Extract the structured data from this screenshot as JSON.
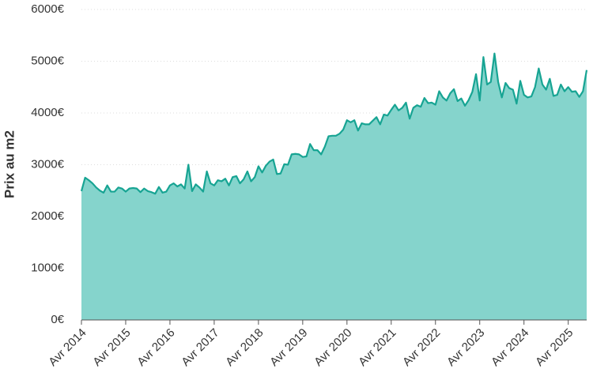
{
  "chart_data": {
    "type": "area",
    "y_label": "Prix au m2",
    "x": [
      "2014-04",
      "2014-05",
      "2014-06",
      "2014-07",
      "2014-08",
      "2014-09",
      "2014-10",
      "2014-11",
      "2014-12",
      "2015-01",
      "2015-02",
      "2015-03",
      "2015-04",
      "2015-05",
      "2015-06",
      "2015-07",
      "2015-08",
      "2015-09",
      "2015-10",
      "2015-11",
      "2015-12",
      "2016-01",
      "2016-02",
      "2016-03",
      "2016-04",
      "2016-05",
      "2016-06",
      "2016-07",
      "2016-08",
      "2016-09",
      "2016-10",
      "2016-11",
      "2016-12",
      "2017-01",
      "2017-02",
      "2017-03",
      "2017-04",
      "2017-05",
      "2017-06",
      "2017-07",
      "2017-08",
      "2017-09",
      "2017-10",
      "2017-11",
      "2017-12",
      "2018-01",
      "2018-02",
      "2018-03",
      "2018-04",
      "2018-05",
      "2018-06",
      "2018-07",
      "2018-08",
      "2018-09",
      "2018-10",
      "2018-11",
      "2018-12",
      "2019-01",
      "2019-02",
      "2019-03",
      "2019-04",
      "2019-05",
      "2019-06",
      "2019-07",
      "2019-08",
      "2019-09",
      "2019-10",
      "2019-11",
      "2019-12",
      "2020-01",
      "2020-02",
      "2020-03",
      "2020-04",
      "2020-05",
      "2020-06",
      "2020-07",
      "2020-08",
      "2020-09",
      "2020-10",
      "2020-11",
      "2020-12",
      "2021-01",
      "2021-02",
      "2021-03",
      "2021-04",
      "2021-05",
      "2021-06",
      "2021-07",
      "2021-08",
      "2021-09",
      "2021-10",
      "2021-11",
      "2021-12",
      "2022-01",
      "2022-02",
      "2022-03",
      "2022-04",
      "2022-05",
      "2022-06",
      "2022-07",
      "2022-08",
      "2022-09",
      "2022-10",
      "2022-11",
      "2022-12",
      "2023-01",
      "2023-02",
      "2023-03",
      "2023-04",
      "2023-05",
      "2023-06",
      "2023-07",
      "2023-08",
      "2023-09",
      "2023-10",
      "2023-11",
      "2023-12",
      "2024-01",
      "2024-02",
      "2024-03",
      "2024-04",
      "2024-05",
      "2024-06",
      "2024-07",
      "2024-08",
      "2024-09",
      "2024-10",
      "2024-11",
      "2024-12",
      "2025-01",
      "2025-02",
      "2025-03",
      "2025-04",
      "2025-05",
      "2025-06",
      "2025-07",
      "2025-08",
      "2025-09"
    ],
    "values": [
      2490,
      2750,
      2700,
      2640,
      2560,
      2500,
      2460,
      2600,
      2480,
      2480,
      2560,
      2540,
      2480,
      2540,
      2550,
      2540,
      2470,
      2540,
      2490,
      2470,
      2440,
      2570,
      2460,
      2480,
      2600,
      2640,
      2580,
      2620,
      2540,
      3000,
      2490,
      2620,
      2560,
      2480,
      2870,
      2640,
      2600,
      2700,
      2680,
      2730,
      2600,
      2760,
      2780,
      2640,
      2720,
      2870,
      2680,
      2760,
      2970,
      2850,
      2980,
      3060,
      3100,
      2820,
      2830,
      3010,
      3000,
      3200,
      3210,
      3200,
      3150,
      3160,
      3400,
      3280,
      3280,
      3200,
      3350,
      3550,
      3560,
      3560,
      3600,
      3680,
      3860,
      3820,
      3860,
      3660,
      3800,
      3780,
      3780,
      3850,
      3920,
      3780,
      3970,
      3950,
      4060,
      4160,
      4050,
      4100,
      4200,
      3890,
      4100,
      4150,
      4120,
      4290,
      4190,
      4200,
      4160,
      4420,
      4300,
      4240,
      4380,
      4460,
      4230,
      4280,
      4140,
      4250,
      4410,
      4750,
      4240,
      5080,
      4550,
      4600,
      5150,
      4600,
      4300,
      4580,
      4480,
      4450,
      4180,
      4620,
      4350,
      4300,
      4320,
      4500,
      4860,
      4550,
      4450,
      4660,
      4330,
      4350,
      4550,
      4420,
      4500,
      4410,
      4420,
      4310,
      4420,
      4830
    ],
    "line_color": "#17a493",
    "fill_color": "#85d4cc",
    "ylim": [
      0,
      6000
    ],
    "yticks": [
      {
        "value": 0,
        "label": "0€"
      },
      {
        "value": 1000,
        "label": "1000€"
      },
      {
        "value": 2000,
        "label": "2000€"
      },
      {
        "value": 3000,
        "label": "3000€"
      },
      {
        "value": 4000,
        "label": "4000€"
      },
      {
        "value": 5000,
        "label": "5000€"
      },
      {
        "value": 6000,
        "label": "6000€"
      }
    ],
    "xticks": [
      {
        "value": "2014-04",
        "label": "Avr 2014"
      },
      {
        "value": "2015-04",
        "label": "Avr 2015"
      },
      {
        "value": "2016-04",
        "label": "Avr 2016"
      },
      {
        "value": "2017-04",
        "label": "Avr 2017"
      },
      {
        "value": "2018-04",
        "label": "Avr 2018"
      },
      {
        "value": "2019-04",
        "label": "Avr 2019"
      },
      {
        "value": "2020-04",
        "label": "Avr 2020"
      },
      {
        "value": "2021-04",
        "label": "Avr 2021"
      },
      {
        "value": "2022-04",
        "label": "Avr 2022"
      },
      {
        "value": "2023-04",
        "label": "Avr 2023"
      },
      {
        "value": "2024-04",
        "label": "Avr 2024"
      },
      {
        "value": "2025-04",
        "label": "Avr 2025"
      }
    ],
    "grid": true
  }
}
